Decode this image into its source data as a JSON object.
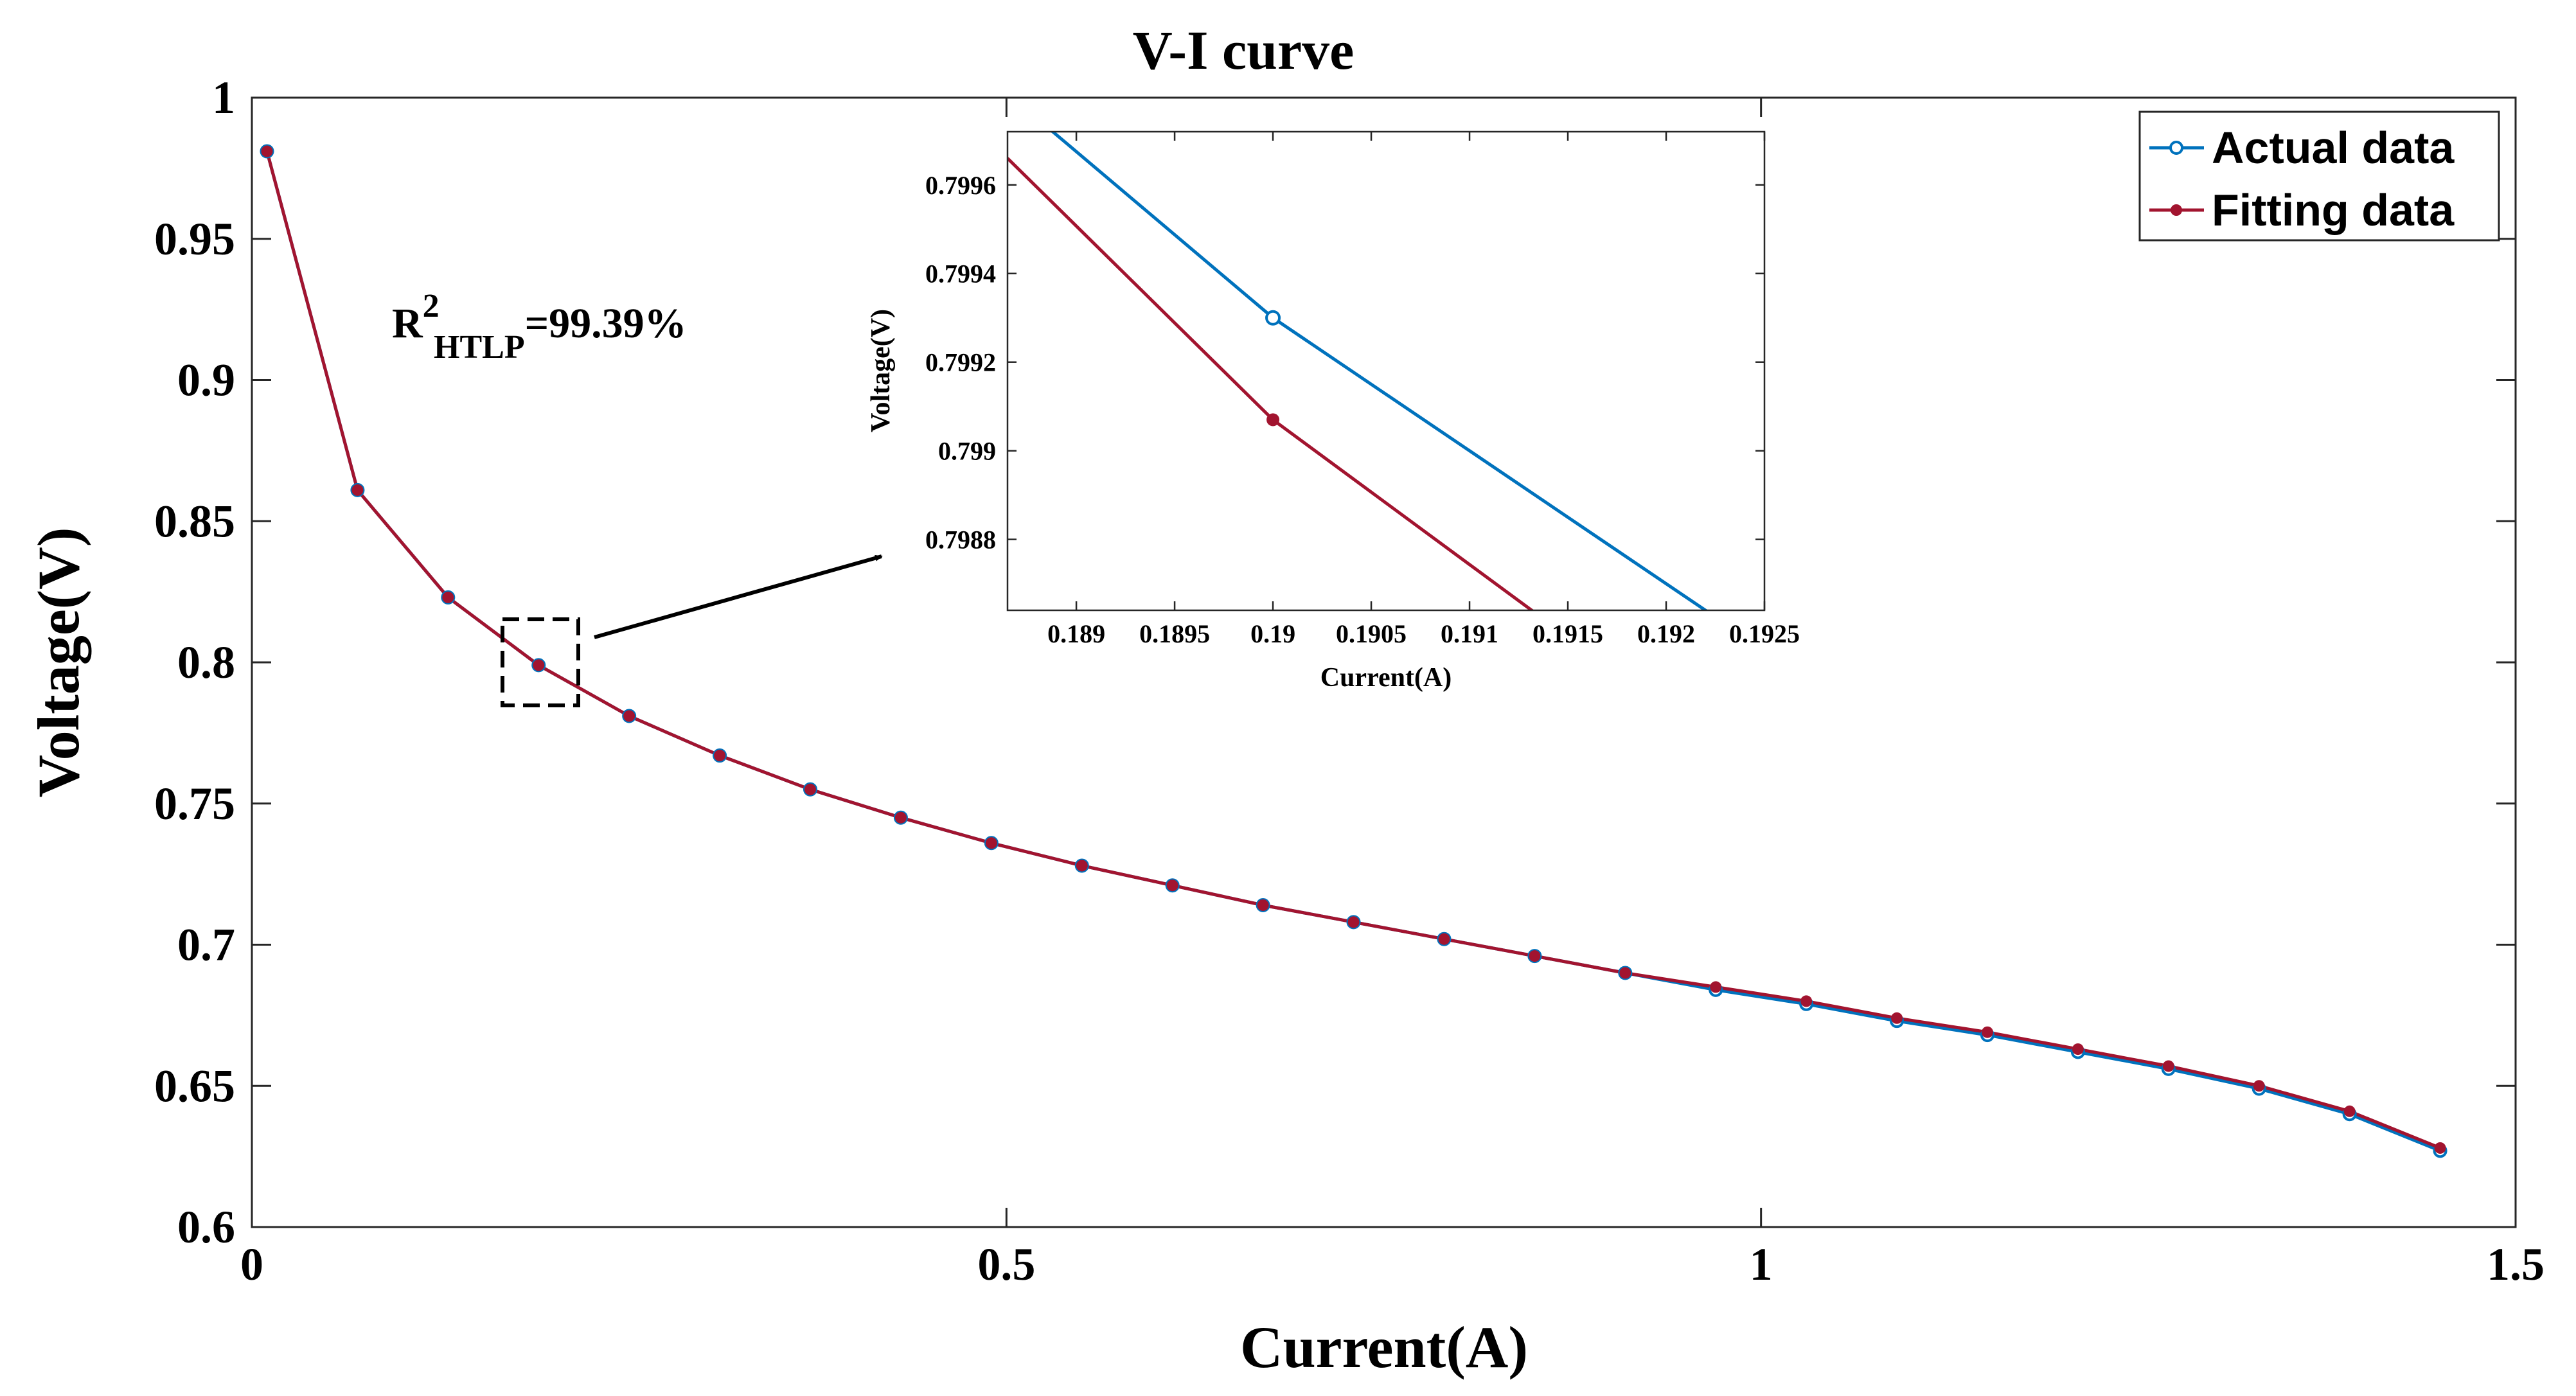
{
  "chart_data": [
    {
      "type": "line",
      "title": "V-I curve",
      "xlabel": "Current(A)",
      "ylabel": "Voltage(V)",
      "xlim": [
        0,
        1.5
      ],
      "ylim": [
        0.6,
        1.0
      ],
      "xticks": [
        0,
        0.5,
        1,
        1.5
      ],
      "xtick_labels": [
        "0",
        "0.5",
        "1",
        "1.5"
      ],
      "yticks": [
        0.6,
        0.65,
        0.7,
        0.75,
        0.8,
        0.85,
        0.9,
        0.95,
        1.0
      ],
      "ytick_labels": [
        "0.6",
        "0.65",
        "0.7",
        "0.75",
        "0.8",
        "0.85",
        "0.9",
        "0.95",
        "1"
      ],
      "grid": false,
      "legend_position": "top-right",
      "x": [
        0.01,
        0.07,
        0.13,
        0.19,
        0.25,
        0.31,
        0.37,
        0.43,
        0.49,
        0.55,
        0.61,
        0.67,
        0.73,
        0.79,
        0.85,
        0.91,
        0.97,
        1.03,
        1.09,
        1.15,
        1.21,
        1.27,
        1.33,
        1.39,
        1.45
      ],
      "series": [
        {
          "name": "Actual data",
          "color": "#0072BD",
          "marker": "open-circle",
          "values": [
            0.981,
            0.861,
            0.823,
            0.799,
            0.781,
            0.767,
            0.755,
            0.745,
            0.736,
            0.728,
            0.721,
            0.714,
            0.708,
            0.702,
            0.696,
            0.69,
            0.684,
            0.679,
            0.673,
            0.668,
            0.662,
            0.656,
            0.649,
            0.64,
            0.627
          ]
        },
        {
          "name": "Fitting data",
          "color": "#A2142F",
          "marker": "filled-dot",
          "values": [
            0.981,
            0.861,
            0.823,
            0.799,
            0.781,
            0.767,
            0.755,
            0.745,
            0.736,
            0.728,
            0.721,
            0.714,
            0.708,
            0.702,
            0.696,
            0.69,
            0.685,
            0.68,
            0.674,
            0.669,
            0.663,
            0.657,
            0.65,
            0.641,
            0.628
          ]
        }
      ],
      "annotations": {
        "r2_base": "R",
        "r2_super": "2",
        "r2_sub": "HTLP",
        "r2_value": "=99.39%"
      }
    },
    {
      "type": "line",
      "title": "",
      "xlabel": "Current(A)",
      "ylabel": "Voltage(V)",
      "xlim": [
        0.18865,
        0.1925
      ],
      "ylim": [
        0.79864,
        0.79972
      ],
      "xticks": [
        0.189,
        0.1895,
        0.19,
        0.1905,
        0.191,
        0.1915,
        0.192,
        0.1925
      ],
      "xtick_labels": [
        "0.189",
        "0.1895",
        "0.19",
        "0.1905",
        "0.191",
        "0.1915",
        "0.192",
        "0.1925"
      ],
      "yticks": [
        0.7988,
        0.799,
        0.7992,
        0.7994,
        0.7996
      ],
      "ytick_labels": [
        "0.7988",
        "0.799",
        "0.7992",
        "0.7994",
        "0.7996"
      ],
      "grid": false,
      "series": [
        {
          "name": "Actual data",
          "color": "#0072BD",
          "marker": "open-circle",
          "x": [
            0.1888,
            0.19,
            0.1923
          ],
          "values": [
            0.79975,
            0.7993,
            0.79861
          ],
          "marker_indices": [
            1
          ]
        },
        {
          "name": "Fitting data",
          "color": "#A2142F",
          "marker": "filled-dot",
          "x": [
            0.18865,
            0.19,
            0.1915
          ],
          "values": [
            0.79966,
            0.79907,
            0.79858
          ],
          "marker_indices": [
            1
          ]
        }
      ]
    }
  ]
}
